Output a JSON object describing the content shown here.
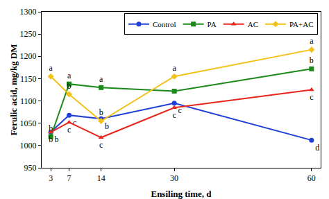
{
  "chart_data": {
    "type": "line",
    "x_label": "Ensiling time, d",
    "y_label": "Ferulic acid, mg/kg DM",
    "x": [
      3,
      7,
      14,
      30,
      60
    ],
    "series": [
      {
        "name": "Control",
        "color": "#1f3fd6",
        "marker": "circle",
        "values": [
          1030,
          1068,
          1060,
          1095,
          1012
        ],
        "letters": [
          "b",
          "c",
          "b",
          "c",
          "d"
        ]
      },
      {
        "name": "PA",
        "color": "#1a8a1a",
        "marker": "square",
        "values": [
          1020,
          1138,
          1130,
          1122,
          1172
        ],
        "letters": [
          "b",
          "a",
          "a",
          null,
          "b"
        ]
      },
      {
        "name": "AC",
        "color": "#e8261c",
        "marker": "triangle",
        "values": [
          1030,
          1052,
          1018,
          1085,
          1125
        ],
        "letters": [
          "b",
          "c",
          "c",
          "c",
          "c"
        ]
      },
      {
        "name": "PA+AC",
        "color": "#f2c21a",
        "marker": "diamond",
        "values": [
          1155,
          1115,
          1055,
          1155,
          1215
        ],
        "letters": [
          "a",
          "b",
          "b",
          "a",
          "a"
        ]
      }
    ],
    "xlim": [
      1,
      62
    ],
    "xticks": [
      3,
      7,
      14,
      30,
      60
    ],
    "ylim": [
      950,
      1300
    ],
    "yticks": [
      950,
      1000,
      1050,
      1100,
      1150,
      1200,
      1250,
      1300
    ],
    "grid": false,
    "legend": "top right"
  }
}
